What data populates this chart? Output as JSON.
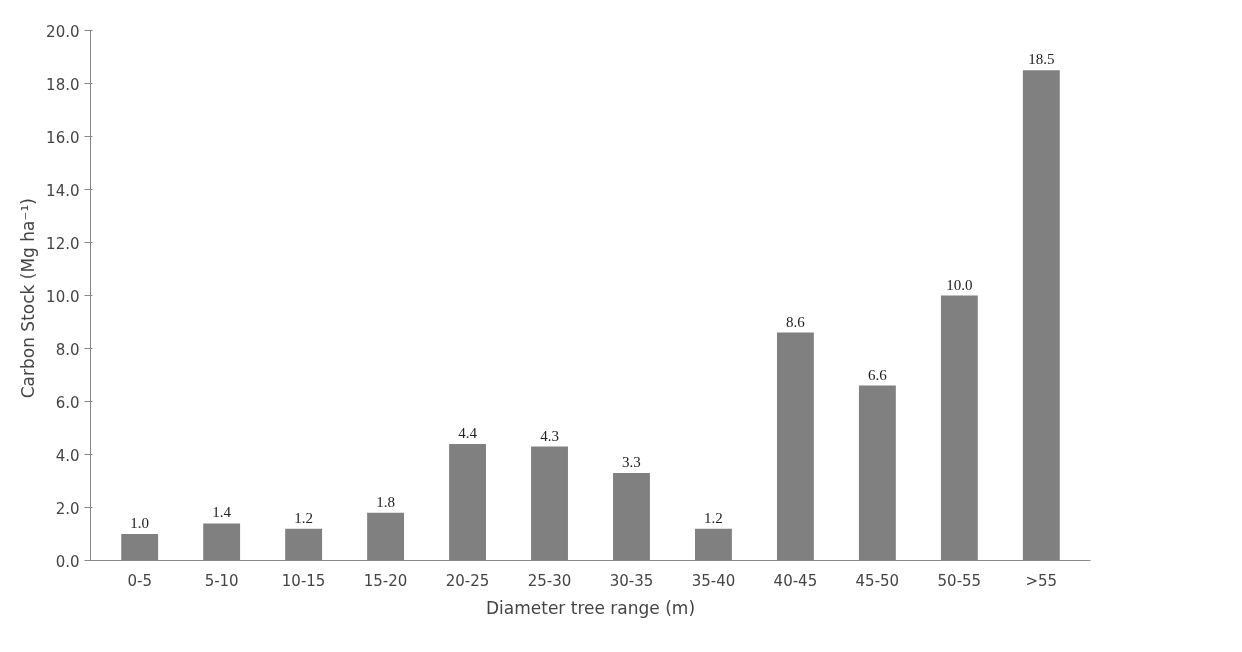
{
  "chart_data": {
    "type": "bar",
    "xlabel": "Diameter tree range (m)",
    "ylabel": "Carbon Stock  (Mg ha⁻¹)",
    "categories": [
      "0-5",
      "5-10",
      "10-15",
      "15-20",
      "20-25",
      "25-30",
      "30-35",
      "35-40",
      "40-45",
      "45-50",
      "50-55",
      ">55"
    ],
    "values": [
      1.0,
      1.4,
      1.2,
      1.8,
      4.4,
      4.3,
      3.3,
      1.2,
      8.6,
      6.6,
      10.0,
      18.5
    ],
    "value_labels": [
      "1.0",
      "1.4",
      "1.2",
      "1.8",
      "4.4",
      "4.3",
      "3.3",
      "1.2",
      "8.6",
      "6.6",
      "10.0",
      "18.5"
    ],
    "color": "#808080",
    "ylim": [
      0,
      20
    ],
    "yticks": [
      {
        "value": 0,
        "label": "0.0"
      },
      {
        "value": 2,
        "label": "2.0"
      },
      {
        "value": 4,
        "label": "4.0"
      },
      {
        "value": 6,
        "label": "6.0"
      },
      {
        "value": 8,
        "label": "8.0"
      },
      {
        "value": 10,
        "label": "10.0"
      },
      {
        "value": 12,
        "label": "12.0"
      },
      {
        "value": 14,
        "label": "14.0"
      },
      {
        "value": 16,
        "label": "16.0"
      },
      {
        "value": 18,
        "label": "18.0"
      },
      {
        "value": 20,
        "label": "20.0"
      }
    ],
    "grid": false
  }
}
